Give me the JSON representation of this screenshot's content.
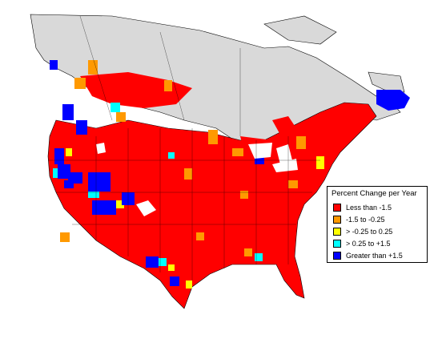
{
  "legend": {
    "title": "Percent Change per Year",
    "items": [
      {
        "label": "Less than -1.5",
        "color": "#ff0000"
      },
      {
        "label": "-1.5 to -0.25",
        "color": "#ff9900"
      },
      {
        "label": "> -0.25 to 0.25",
        "color": "#ffff00"
      },
      {
        "label": "> 0.25 to +1.5",
        "color": "#00ffff"
      },
      {
        "label": "Greater than +1.5",
        "color": "#0000ff"
      }
    ]
  },
  "colors": {
    "land_no_data": "#d9d9d9",
    "background": "#ffffff",
    "borders": "#000000"
  }
}
